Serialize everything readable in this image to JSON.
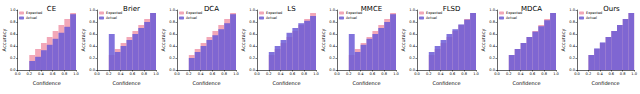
{
  "chart_data": [
    {
      "type": "bar",
      "title": "CE",
      "x_label": "Confidence",
      "y_label": "Accuracy",
      "bins": [
        0,
        0.1,
        0.2,
        0.3,
        0.4,
        0.5,
        0.6,
        0.7,
        0.8,
        0.9,
        1
      ],
      "series": [
        {
          "name": "Expected",
          "color": "#f2a7b8",
          "values": [
            0,
            0,
            0.25,
            0.35,
            0.45,
            0.55,
            0.65,
            0.75,
            0.85,
            0.95
          ]
        },
        {
          "name": "Actual",
          "color": "#6b5bd6",
          "values": [
            0,
            0,
            0.15,
            0.22,
            0.33,
            0.42,
            0.52,
            0.62,
            0.72,
            0.93
          ]
        }
      ],
      "xlim": [
        0,
        1
      ],
      "ylim": [
        0,
        1
      ],
      "xticks": [
        {
          "value": 0,
          "label": "0.0"
        },
        0.2,
        0.4,
        0.6,
        0.8,
        {
          "value": 1,
          "label": "1.0"
        }
      ],
      "yticks": [
        {
          "value": 0,
          "label": "0.0"
        },
        0.2,
        0.4,
        0.6,
        0.8,
        {
          "value": 1,
          "label": "1.0"
        }
      ],
      "legend": "upper left",
      "grid": false
    },
    {
      "type": "bar",
      "title": "Brier",
      "x_label": "Confidence",
      "y_label": "Accuracy",
      "bins": [
        0,
        0.1,
        0.2,
        0.3,
        0.4,
        0.5,
        0.6,
        0.7,
        0.8,
        0.9,
        1
      ],
      "series": [
        {
          "name": "Expected",
          "color": "#f2a7b8",
          "values": [
            0,
            0,
            0.25,
            0.35,
            0.45,
            0.55,
            0.65,
            0.75,
            0.85,
            0.95
          ]
        },
        {
          "name": "Actual",
          "color": "#6b5bd6",
          "values": [
            0,
            0,
            0.6,
            0.3,
            0.4,
            0.5,
            0.6,
            0.7,
            0.8,
            0.95
          ]
        }
      ],
      "xlim": [
        0,
        1
      ],
      "ylim": [
        0,
        1
      ],
      "xticks": [
        {
          "value": 0,
          "label": "0.0"
        },
        0.2,
        0.4,
        0.6,
        0.8,
        {
          "value": 1,
          "label": "1.0"
        }
      ],
      "yticks": [
        {
          "value": 0,
          "label": "0.0"
        },
        0.2,
        0.4,
        0.6,
        0.8,
        {
          "value": 1,
          "label": "1.0"
        }
      ],
      "legend": "upper left",
      "grid": false
    },
    {
      "type": "bar",
      "title": "DCA",
      "x_label": "Confidence",
      "y_label": "Accuracy",
      "bins": [
        0,
        0.1,
        0.2,
        0.3,
        0.4,
        0.5,
        0.6,
        0.7,
        0.8,
        0.9,
        1
      ],
      "series": [
        {
          "name": "Expected",
          "color": "#f2a7b8",
          "values": [
            0,
            0,
            0.25,
            0.35,
            0.45,
            0.55,
            0.65,
            0.75,
            0.85,
            0.95
          ]
        },
        {
          "name": "Actual",
          "color": "#6b5bd6",
          "values": [
            0,
            0,
            0.2,
            0.3,
            0.4,
            0.5,
            0.58,
            0.68,
            0.78,
            0.93
          ]
        }
      ],
      "xlim": [
        0,
        1
      ],
      "ylim": [
        0,
        1
      ],
      "xticks": [
        {
          "value": 0,
          "label": "0.0"
        },
        0.2,
        0.4,
        0.6,
        0.8,
        {
          "value": 1,
          "label": "1.0"
        }
      ],
      "yticks": [
        {
          "value": 0,
          "label": "0.0"
        },
        0.2,
        0.4,
        0.6,
        0.8,
        {
          "value": 1,
          "label": "1.0"
        }
      ],
      "legend": "upper left",
      "grid": false
    },
    {
      "type": "bar",
      "title": "LS",
      "x_label": "Confidence",
      "y_label": "Accuracy",
      "bins": [
        0,
        0.1,
        0.2,
        0.3,
        0.4,
        0.5,
        0.6,
        0.7,
        0.8,
        0.9,
        1
      ],
      "series": [
        {
          "name": "Expected",
          "color": "#f2a7b8",
          "values": [
            0,
            0,
            0.25,
            0.35,
            0.45,
            0.55,
            0.65,
            0.75,
            0.85,
            0.95
          ]
        },
        {
          "name": "Actual",
          "color": "#6b5bd6",
          "values": [
            0,
            0,
            0.3,
            0.4,
            0.5,
            0.62,
            0.7,
            0.78,
            0.82,
            0.9
          ]
        }
      ],
      "xlim": [
        0,
        1
      ],
      "ylim": [
        0,
        1
      ],
      "xticks": [
        {
          "value": 0,
          "label": "0.0"
        },
        0.2,
        0.4,
        0.6,
        0.8,
        {
          "value": 1,
          "label": "1.0"
        }
      ],
      "yticks": [
        {
          "value": 0,
          "label": "0.0"
        },
        0.2,
        0.4,
        0.6,
        0.8,
        {
          "value": 1,
          "label": "1.0"
        }
      ],
      "legend": "upper left",
      "grid": false
    },
    {
      "type": "bar",
      "title": "MMCE",
      "x_label": "Confidence",
      "y_label": "Accuracy",
      "bins": [
        0,
        0.1,
        0.2,
        0.3,
        0.4,
        0.5,
        0.6,
        0.7,
        0.8,
        0.9,
        1
      ],
      "series": [
        {
          "name": "Expected",
          "color": "#f2a7b8",
          "values": [
            0,
            0,
            0.25,
            0.35,
            0.45,
            0.55,
            0.65,
            0.75,
            0.85,
            0.95
          ]
        },
        {
          "name": "Actual",
          "color": "#6b5bd6",
          "values": [
            0,
            0,
            0.6,
            0.3,
            0.42,
            0.52,
            0.6,
            0.7,
            0.8,
            0.93
          ]
        }
      ],
      "xlim": [
        0,
        1
      ],
      "ylim": [
        0,
        1
      ],
      "xticks": [
        {
          "value": 0,
          "label": "0.0"
        },
        0.2,
        0.4,
        0.6,
        0.8,
        {
          "value": 1,
          "label": "1.0"
        }
      ],
      "yticks": [
        {
          "value": 0,
          "label": "0.0"
        },
        0.2,
        0.4,
        0.6,
        0.8,
        {
          "value": 1,
          "label": "1.0"
        }
      ],
      "legend": "upper left",
      "grid": false
    },
    {
      "type": "bar",
      "title": "FLSD",
      "x_label": "Confidence",
      "y_label": "Accuracy",
      "bins": [
        0,
        0.1,
        0.2,
        0.3,
        0.4,
        0.5,
        0.6,
        0.7,
        0.8,
        0.9,
        1
      ],
      "series": [
        {
          "name": "Expected",
          "color": "#f2a7b8",
          "values": [
            0,
            0,
            0.25,
            0.35,
            0.45,
            0.55,
            0.65,
            0.75,
            0.85,
            0.95
          ]
        },
        {
          "name": "Actual",
          "color": "#6b5bd6",
          "values": [
            0,
            0,
            0.3,
            0.4,
            0.5,
            0.6,
            0.68,
            0.76,
            0.84,
            0.95
          ]
        }
      ],
      "xlim": [
        0,
        1
      ],
      "ylim": [
        0,
        1
      ],
      "xticks": [
        {
          "value": 0,
          "label": "0.0"
        },
        0.2,
        0.4,
        0.6,
        0.8,
        {
          "value": 1,
          "label": "1.0"
        }
      ],
      "yticks": [
        {
          "value": 0,
          "label": "0.0"
        },
        0.2,
        0.4,
        0.6,
        0.8,
        {
          "value": 1,
          "label": "1.0"
        }
      ],
      "legend": "upper left",
      "grid": false
    },
    {
      "type": "bar",
      "title": "MDCA",
      "x_label": "Confidence",
      "y_label": "Accuracy",
      "bins": [
        0,
        0.1,
        0.2,
        0.3,
        0.4,
        0.5,
        0.6,
        0.7,
        0.8,
        0.9,
        1
      ],
      "series": [
        {
          "name": "Expected",
          "color": "#f2a7b8",
          "values": [
            0,
            0,
            0.25,
            0.35,
            0.45,
            0.55,
            0.65,
            0.75,
            0.85,
            0.95
          ]
        },
        {
          "name": "Actual",
          "color": "#6b5bd6",
          "values": [
            0,
            0,
            0.25,
            0.35,
            0.45,
            0.55,
            0.64,
            0.73,
            0.83,
            0.95
          ]
        }
      ],
      "xlim": [
        0,
        1
      ],
      "ylim": [
        0,
        1
      ],
      "xticks": [
        {
          "value": 0,
          "label": "0.0"
        },
        0.2,
        0.4,
        0.6,
        0.8,
        {
          "value": 1,
          "label": "1.0"
        }
      ],
      "yticks": [
        {
          "value": 0,
          "label": "0.0"
        },
        0.2,
        0.4,
        0.6,
        0.8,
        {
          "value": 1,
          "label": "1.0"
        }
      ],
      "legend": "upper left",
      "grid": false
    },
    {
      "type": "bar",
      "title": "Ours",
      "x_label": "Confidence",
      "y_label": "Accuracy",
      "bins": [
        0,
        0.1,
        0.2,
        0.3,
        0.4,
        0.5,
        0.6,
        0.7,
        0.8,
        0.9,
        1
      ],
      "series": [
        {
          "name": "Expected",
          "color": "#f2a7b8",
          "values": [
            0,
            0,
            0.25,
            0.35,
            0.45,
            0.55,
            0.65,
            0.75,
            0.85,
            0.95
          ]
        },
        {
          "name": "Actual",
          "color": "#6b5bd6",
          "values": [
            0,
            0,
            0.25,
            0.36,
            0.46,
            0.55,
            0.65,
            0.75,
            0.85,
            0.95
          ]
        }
      ],
      "xlim": [
        0,
        1
      ],
      "ylim": [
        0,
        1
      ],
      "xticks": [
        {
          "value": 0,
          "label": "0.0"
        },
        0.2,
        0.4,
        0.6,
        0.8,
        {
          "value": 1,
          "label": "1.0"
        }
      ],
      "yticks": [
        {
          "value": 0,
          "label": "0.0"
        },
        0.2,
        0.4,
        0.6,
        0.8,
        {
          "value": 1,
          "label": "1.0"
        }
      ],
      "legend": "upper left",
      "grid": false
    }
  ]
}
